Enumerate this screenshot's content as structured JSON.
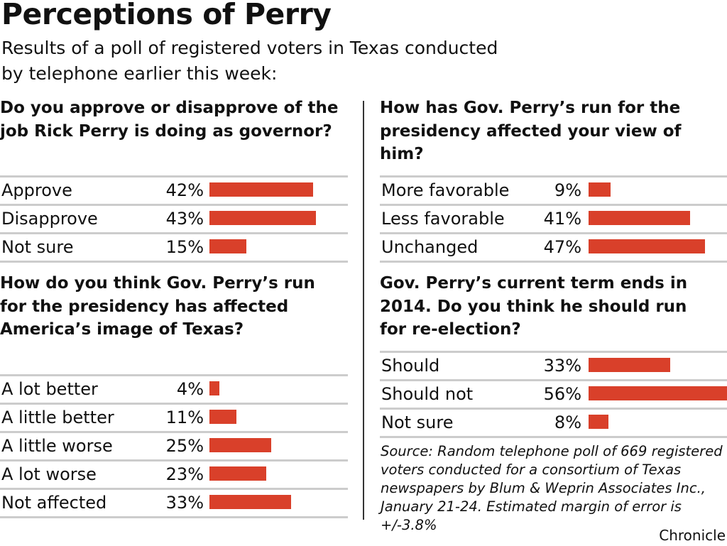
{
  "title": "Perceptions of Perry",
  "subtitle": "Results of a poll of registered voters in Texas conducted by telephone earlier this week:",
  "source": "Source: Random telephone poll of 669 registered voters conducted for a consortium of Texas newspapers by Blum & Weprin Associates Inc., January 21-24. Estimated margin of error is +/-3.8%",
  "credit": "Chronicle",
  "colors": {
    "bar": "#d9402a",
    "rule": "#cccccc"
  },
  "chart_data": [
    {
      "type": "bar",
      "orientation": "horizontal",
      "title": "Do you approve or disapprove of the job Rick Perry is doing as governor?",
      "categories": [
        "Approve",
        "Disapprove",
        "Not sure"
      ],
      "values": [
        42,
        43,
        15
      ],
      "labels": [
        "42%",
        "43%",
        "15%"
      ]
    },
    {
      "type": "bar",
      "orientation": "horizontal",
      "title": "How do you think Gov. Perry’s run for the presidency has affected America’s image of Texas?",
      "categories": [
        "A lot better",
        "A little better",
        "A little worse",
        "A lot worse",
        "Not affected"
      ],
      "values": [
        4,
        11,
        25,
        23,
        33
      ],
      "labels": [
        "4%",
        "11%",
        "25%",
        "23%",
        "33%"
      ]
    },
    {
      "type": "bar",
      "orientation": "horizontal",
      "title": "How has Gov. Perry’s run for the presidency affected your view of him?",
      "categories": [
        "More favorable",
        "Less favorable",
        "Unchanged"
      ],
      "values": [
        9,
        41,
        47
      ],
      "labels": [
        "9%",
        "41%",
        "47%"
      ]
    },
    {
      "type": "bar",
      "orientation": "horizontal",
      "title": "Gov. Perry’s current term ends in 2014. Do you think he should run for re-election?",
      "categories": [
        "Should",
        "Should not",
        "Not sure"
      ],
      "values": [
        33,
        56,
        8
      ],
      "labels": [
        "33%",
        "56%",
        "8%"
      ]
    }
  ]
}
